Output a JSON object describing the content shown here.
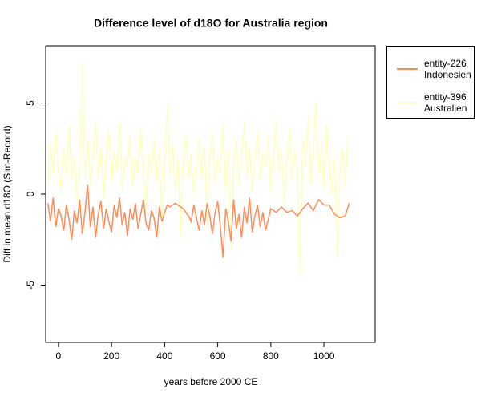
{
  "chart_data": {
    "type": "line",
    "title": "Difference level of d18O for Australia region",
    "x_label": "years before 2000 CE",
    "y_label": "Diff in mean d18O (Sim-Record)",
    "xlim": [
      -48,
      1193
    ],
    "ylim": [
      -8.15,
      8.15
    ],
    "xticks": [
      0,
      200,
      400,
      600,
      800,
      1000
    ],
    "yticks": [
      -5,
      0,
      5
    ],
    "legend": "outside-right",
    "series": [
      {
        "name": "entity-226\nIndonesien",
        "color": "#fc8d59",
        "x": [
          -40,
          -30,
          -20,
          -10,
          0,
          10,
          20,
          30,
          40,
          50,
          60,
          70,
          80,
          90,
          100,
          110,
          120,
          130,
          140,
          150,
          160,
          170,
          180,
          190,
          200,
          210,
          220,
          230,
          240,
          250,
          260,
          270,
          280,
          290,
          300,
          310,
          320,
          330,
          340,
          350,
          360,
          370,
          380,
          390,
          400,
          410,
          420,
          440,
          470,
          490,
          500,
          510,
          520,
          530,
          540,
          550,
          560,
          570,
          580,
          590,
          600,
          610,
          620,
          630,
          640,
          650,
          660,
          670,
          680,
          690,
          700,
          710,
          720,
          730,
          740,
          750,
          760,
          770,
          780,
          800,
          820,
          840,
          860,
          880,
          900,
          920,
          940,
          960,
          980,
          1000,
          1020,
          1040,
          1060,
          1080,
          1095
        ],
        "values": [
          -0.5,
          -1.5,
          -0.2,
          -1.8,
          -0.8,
          -1.2,
          -2.0,
          -0.6,
          -1.4,
          -2.5,
          -0.9,
          -1.6,
          -0.3,
          -2.2,
          -1.0,
          0.5,
          -1.8,
          -0.7,
          -2.4,
          -1.1,
          -0.4,
          -1.9,
          -0.8,
          -1.5,
          -2.1,
          -0.6,
          -1.3,
          -0.2,
          -1.7,
          -1.0,
          -2.3,
          -0.8,
          -1.4,
          -0.5,
          -1.9,
          -1.1,
          -0.3,
          -1.6,
          -2.0,
          -0.9,
          -1.3,
          -2.4,
          -0.7,
          -1.5,
          -1.0,
          -0.6,
          -0.7,
          -0.5,
          -0.8,
          -1.2,
          -1.5,
          -0.6,
          -1.3,
          -2.0,
          -0.9,
          -1.7,
          -0.5,
          -1.2,
          -2.2,
          -1.0,
          -0.4,
          -1.8,
          -3.5,
          -0.8,
          -1.5,
          -2.6,
          -0.3,
          -1.9,
          -1.1,
          -2.4,
          -0.7,
          -1.6,
          -0.2,
          -2.1,
          -1.2,
          -0.6,
          -1.8,
          -1.0,
          -2.0,
          -0.8,
          -1.0,
          -0.7,
          -1.0,
          -0.9,
          -1.2,
          -0.8,
          -0.5,
          -0.9,
          -0.3,
          -0.6,
          -0.6,
          -1.1,
          -1.3,
          -1.2,
          -0.5
        ]
      },
      {
        "name": "entity-396\nAustralien",
        "color": "#ffffbf",
        "x": [
          -40,
          -30,
          -20,
          -10,
          0,
          10,
          20,
          30,
          40,
          50,
          60,
          70,
          80,
          90,
          100,
          110,
          120,
          130,
          140,
          150,
          160,
          170,
          180,
          190,
          200,
          210,
          220,
          230,
          240,
          250,
          260,
          270,
          280,
          290,
          300,
          310,
          320,
          330,
          340,
          350,
          360,
          370,
          380,
          390,
          400,
          410,
          420,
          430,
          440,
          450,
          460,
          470,
          480,
          490,
          500,
          510,
          520,
          530,
          540,
          550,
          560,
          570,
          580,
          590,
          600,
          610,
          620,
          630,
          640,
          650,
          660,
          670,
          680,
          690,
          700,
          710,
          720,
          730,
          740,
          750,
          760,
          770,
          780,
          790,
          800,
          810,
          820,
          830,
          840,
          850,
          860,
          870,
          880,
          890,
          900,
          910,
          920,
          930,
          940,
          950,
          960,
          970,
          980,
          990,
          1000,
          1010,
          1020,
          1030,
          1040,
          1050,
          1060,
          1070,
          1080,
          1090
        ],
        "values": [
          0.5,
          2.8,
          1.0,
          3.5,
          1.2,
          0.3,
          2.5,
          1.0,
          3.8,
          0.8,
          2.0,
          -0.5,
          1.5,
          7.2,
          1.0,
          3.0,
          0.5,
          2.2,
          4.0,
          1.0,
          2.6,
          -0.3,
          1.8,
          3.5,
          0.7,
          2.4,
          1.2,
          3.9,
          0.2,
          2.0,
          1.5,
          3.2,
          0.4,
          2.1,
          1.0,
          3.6,
          1.3,
          -0.8,
          2.3,
          1.1,
          3.0,
          0.6,
          2.5,
          -1.5,
          1.8,
          4.9,
          1.0,
          2.8,
          0.3,
          2.0,
          -2.5,
          1.6,
          3.3,
          0.9,
          2.2,
          0.0,
          1.5,
          3.1,
          0.8,
          2.7,
          -1.6,
          1.9,
          3.4,
          0.6,
          2.0,
          1.2,
          3.8,
          0.2,
          2.4,
          -3.1,
          1.7,
          3.0,
          0.5,
          2.2,
          4.0,
          1.0,
          2.6,
          0.1,
          1.8,
          3.5,
          0.9,
          2.3,
          1.4,
          3.2,
          0.0,
          2.0,
          4.0,
          1.2,
          2.5,
          -0.5,
          1.9,
          3.6,
          0.8,
          2.4,
          1.0,
          -4.4,
          3.0,
          1.5,
          4.2,
          0.5,
          2.2,
          5.0,
          1.0,
          2.8,
          0.3,
          3.8,
          1.6,
          0.0,
          2.0,
          -3.3,
          1.2,
          2.5,
          0.4,
          3.2
        ]
      }
    ]
  }
}
